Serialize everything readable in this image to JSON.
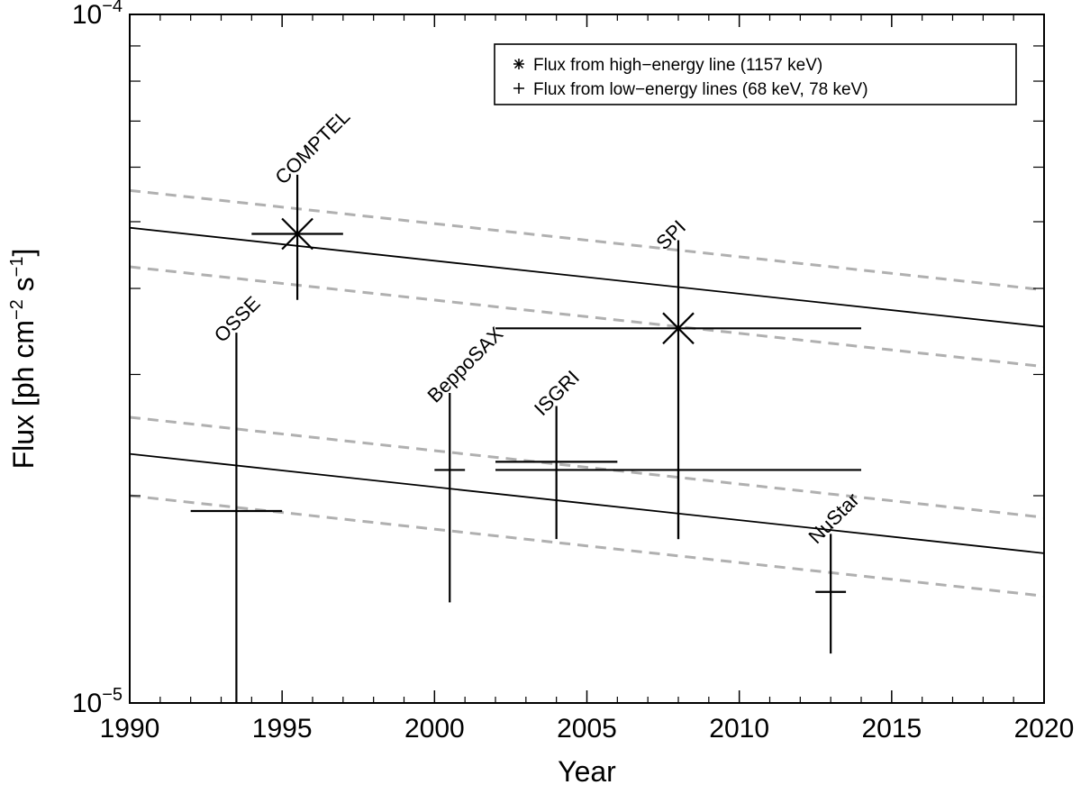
{
  "chart_data": {
    "type": "scatter",
    "xlabel": "Year",
    "ylabel_parts": [
      "Flux [ph cm",
      "−2",
      " s",
      "−1",
      "]"
    ],
    "xlim": [
      1990,
      2020
    ],
    "ylim": [
      1e-05,
      0.0001
    ],
    "yscale": "log",
    "x_ticks": [
      1990,
      1995,
      2000,
      2005,
      2010,
      2015,
      2020
    ],
    "x_tick_labels": [
      "1990",
      "1995",
      "2000",
      "2005",
      "2010",
      "2015",
      "2020"
    ],
    "y_tick_labels": [
      {
        "value": 0.0001,
        "base": "10",
        "exp": "−4"
      },
      {
        "value": 1e-05,
        "base": "10",
        "exp": "−5"
      }
    ],
    "grid": false,
    "legend_position": "top-right",
    "legend": [
      {
        "marker": "asterisk",
        "label": "Flux from high−energy line (1157 keV)"
      },
      {
        "marker": "plus",
        "label": "Flux from low−energy lines (68 keV, 78 keV)"
      }
    ],
    "series": [
      {
        "marker": "asterisk",
        "points": [
          {
            "x": 1995.5,
            "y": 4.8e-05,
            "x_lo": 1994.0,
            "x_hi": 1997.0,
            "y_lo": 3.85e-05,
            "y_hi": 5.85e-05,
            "label": "COMPTEL"
          },
          {
            "x": 2008.0,
            "y": 3.5e-05,
            "x_lo": 2002.0,
            "x_hi": 2014.0,
            "y_lo": 1.73e-05,
            "y_hi": 4.7e-05,
            "label": "SPI"
          }
        ]
      },
      {
        "marker": "plus",
        "points": [
          {
            "x": 1993.5,
            "y": 1.9e-05,
            "x_lo": 1992.0,
            "x_hi": 1995.0,
            "y_lo": 1e-05,
            "y_hi": 3.45e-05,
            "label": "OSSE"
          },
          {
            "x": 2000.5,
            "y": 2.18e-05,
            "x_lo": 2000.0,
            "x_hi": 2001.0,
            "y_lo": 1.4e-05,
            "y_hi": 2.82e-05,
            "label": "BeppoSAX"
          },
          {
            "x": 2004.0,
            "y": 2.24e-05,
            "x_lo": 2002.0,
            "x_hi": 2006.0,
            "y_lo": 1.73e-05,
            "y_hi": 2.7e-05,
            "label": "ISGRI"
          },
          {
            "x": 2008.0,
            "y": 2.18e-05,
            "x_lo": 2002.0,
            "x_hi": 2014.0,
            "y_lo": 1.73e-05,
            "y_hi": 2.18e-05,
            "label": ""
          },
          {
            "x": 2013.0,
            "y": 1.45e-05,
            "x_lo": 2012.5,
            "x_hi": 2013.5,
            "y_lo": 1.18e-05,
            "y_hi": 1.76e-05,
            "label": "NuStar"
          }
        ]
      }
    ],
    "decay_models": [
      {
        "style": "solid",
        "x": [
          1990,
          2020
        ],
        "y": [
          4.9e-05,
          3.52e-05
        ]
      },
      {
        "style": "dashed",
        "x": [
          1990,
          2020
        ],
        "y": [
          5.55e-05,
          3.98e-05
        ]
      },
      {
        "style": "dashed",
        "x": [
          1990,
          2020
        ],
        "y": [
          4.3e-05,
          3.08e-05
        ]
      },
      {
        "style": "solid",
        "x": [
          1990,
          2020
        ],
        "y": [
          2.3e-05,
          1.65e-05
        ]
      },
      {
        "style": "dashed",
        "x": [
          1990,
          2020
        ],
        "y": [
          2.6e-05,
          1.86e-05
        ]
      },
      {
        "style": "dashed",
        "x": [
          1990,
          2020
        ],
        "y": [
          2e-05,
          1.43e-05
        ]
      }
    ],
    "colors": {
      "axis": "#000000",
      "model_solid": "#000000",
      "model_dashed": "#b0b0b0"
    }
  }
}
